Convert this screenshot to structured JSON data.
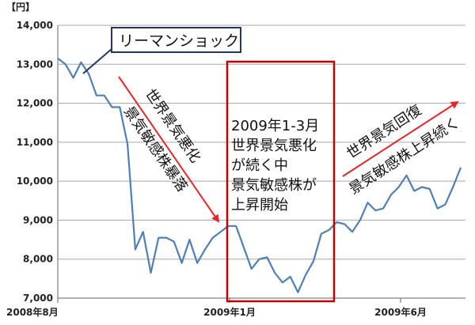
{
  "chart_data": {
    "type": "line",
    "y_unit": "【円】",
    "ylim": [
      7000,
      14000
    ],
    "yticks": [
      7000,
      8000,
      9000,
      10000,
      11000,
      12000,
      13000,
      14000
    ],
    "xticks": [
      "2008年8月",
      "2009年1月",
      "2009年6月"
    ],
    "grid": "horizontal",
    "series": [
      {
        "color": "#4f7fb6",
        "values": [
          13150,
          13000,
          12650,
          13050,
          12750,
          12200,
          12200,
          11900,
          11900,
          10950,
          8250,
          8700,
          7650,
          8550,
          8550,
          8450,
          7900,
          8500,
          7900,
          8250,
          8550,
          8700,
          8850,
          8850,
          8300,
          7750,
          8000,
          8050,
          7650,
          7400,
          7550,
          7150,
          7600,
          7950,
          8650,
          8750,
          8950,
          8900,
          8700,
          9000,
          9450,
          9250,
          9300,
          9650,
          9850,
          10150,
          9750,
          9850,
          9800,
          9300,
          9400,
          9850,
          10350
        ]
      }
    ],
    "annotations": {
      "lehman": "リーマンショック",
      "decline_1": "世界景気悪化",
      "decline_2": "景気敏感株暴落",
      "box_lines": [
        "2009年1-3月",
        "世界景気悪化",
        "が続く中",
        "景気敏感株が",
        "上昇開始"
      ],
      "recovery_1": "世界景気回復",
      "recovery_2": "景気敏感株上昇続く"
    },
    "colors": {
      "line": "#4f7fb6",
      "highlight": "#c00000",
      "arrow": "#e8262a",
      "callout_border": "#1f3864"
    }
  }
}
